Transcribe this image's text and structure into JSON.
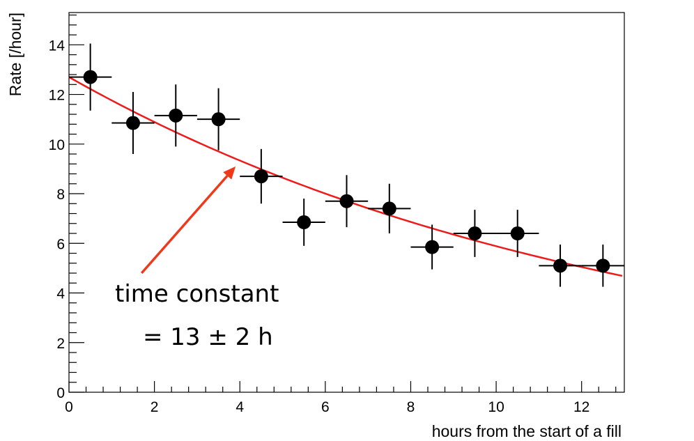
{
  "chart_data": {
    "type": "scatter",
    "xlabel": "hours from the start of a fill",
    "ylabel": "Rate [/hour]",
    "xlim": [
      0,
      13
    ],
    "ylim": [
      0,
      15.3
    ],
    "xticks": [
      0,
      2,
      4,
      6,
      8,
      10,
      12
    ],
    "xtick_labels": [
      "0",
      "2",
      "4",
      "6",
      "8",
      "10",
      "12"
    ],
    "yticks": [
      0,
      2,
      4,
      6,
      8,
      10,
      12,
      14
    ],
    "ytick_labels": [
      "0",
      "2",
      "4",
      "6",
      "8",
      "10",
      "12",
      "14"
    ],
    "grid": false,
    "points": [
      {
        "x": 0.5,
        "y": 12.7,
        "xerr": 0.5,
        "yerr_low": 1.35,
        "yerr_high": 1.35
      },
      {
        "x": 1.5,
        "y": 10.85,
        "xerr": 0.5,
        "yerr_low": 1.25,
        "yerr_high": 1.25
      },
      {
        "x": 2.5,
        "y": 11.15,
        "xerr": 0.5,
        "yerr_low": 1.25,
        "yerr_high": 1.25
      },
      {
        "x": 3.5,
        "y": 11.0,
        "xerr": 0.5,
        "yerr_low": 1.25,
        "yerr_high": 1.25
      },
      {
        "x": 4.5,
        "y": 8.7,
        "xerr": 0.5,
        "yerr_low": 1.1,
        "yerr_high": 1.1
      },
      {
        "x": 5.5,
        "y": 6.85,
        "xerr": 0.5,
        "yerr_low": 0.95,
        "yerr_high": 0.95
      },
      {
        "x": 6.5,
        "y": 7.7,
        "xerr": 0.5,
        "yerr_low": 1.05,
        "yerr_high": 1.05
      },
      {
        "x": 7.5,
        "y": 7.4,
        "xerr": 0.5,
        "yerr_low": 1.0,
        "yerr_high": 1.0
      },
      {
        "x": 8.5,
        "y": 5.85,
        "xerr": 0.5,
        "yerr_low": 0.9,
        "yerr_high": 0.9
      },
      {
        "x": 9.5,
        "y": 6.4,
        "xerr": 0.5,
        "yerr_low": 0.95,
        "yerr_high": 0.95
      },
      {
        "x": 10.5,
        "y": 6.4,
        "xerr": 0.5,
        "yerr_low": 0.95,
        "yerr_high": 0.95
      },
      {
        "x": 11.5,
        "y": 5.1,
        "xerr": 0.5,
        "yerr_low": 0.85,
        "yerr_high": 0.85
      },
      {
        "x": 12.5,
        "y": 5.1,
        "xerr": 0.5,
        "yerr_low": 0.85,
        "yerr_high": 0.85
      }
    ],
    "fit": {
      "amplitude": 12.7,
      "time_constant": 13,
      "x_range": [
        0,
        12.95
      ],
      "color": "#ee1b1b"
    },
    "annotation": {
      "lines": [
        "time constant",
        "= 13 ± 2 h"
      ],
      "arrow_from": [
        1.7,
        4.8
      ],
      "arrow_to": [
        3.9,
        9.1
      ],
      "arrow_color": "#ee3a1b"
    }
  }
}
